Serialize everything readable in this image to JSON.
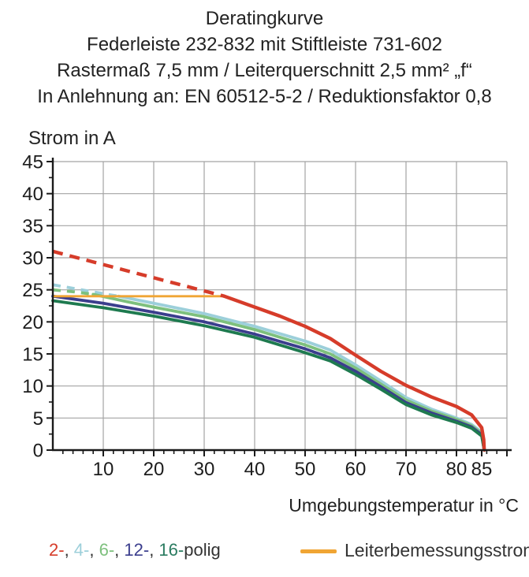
{
  "title": {
    "lines": [
      "Deratingkurve",
      "Federleiste 232-832 mit Stiftleiste 731-602",
      "Rastermaß 7,5 mm / Leiterquerschnitt 2,5 mm² „f“",
      "In Anlehnung an: EN 60512-5-2 / Reduktionsfaktor 0,8"
    ]
  },
  "axes": {
    "y_label": "Strom in A",
    "x_label": "Umgebungstemperatur in °C"
  },
  "legend_left": {
    "items": [
      {
        "label": "2-",
        "color": "#d63c2a"
      },
      {
        "label": "4-",
        "color": "#9ccfda"
      },
      {
        "label": "6-",
        "color": "#7dc07d"
      },
      {
        "label": "12-",
        "color": "#3b3e8d"
      },
      {
        "label": "16-",
        "color": "#2a7b60"
      }
    ],
    "separator": ", ",
    "suffix": "polig"
  },
  "legend_right": {
    "label": "Leiterbemessungsstrom",
    "swatch_color": "#f0a534"
  },
  "colors": {
    "grid": "#a3a3a3",
    "axis": "#1a1a1a",
    "text": "#1c1c1c"
  },
  "chart_data": {
    "type": "line",
    "title": "Deratingkurve Federleiste 232-832 mit Stiftleiste 731-602",
    "xlabel": "Umgebungstemperatur in °C",
    "ylabel": "Strom in A",
    "xlim": [
      0,
      90
    ],
    "ylim": [
      0,
      45
    ],
    "grid": true,
    "x_grid_lines": [
      10,
      20,
      30,
      40,
      50,
      60,
      70,
      80,
      90
    ],
    "y_grid_lines": [
      5,
      10,
      15,
      20,
      25,
      30,
      35,
      40,
      45
    ],
    "x_tick_labels": [
      10,
      20,
      30,
      40,
      50,
      60,
      70,
      80,
      85
    ],
    "y_tick_labels": [
      0,
      5,
      10,
      15,
      20,
      25,
      30,
      35,
      40,
      45
    ],
    "x_minor_tick_step": 2,
    "y_minor_tick_step": 2.5,
    "rated_line": {
      "label": "Leiterbemessungsstrom",
      "value": 24,
      "x_from": 0,
      "x_to": 34,
      "color": "#f0a534",
      "width": 2.8
    },
    "series": [
      {
        "name": "2-polig",
        "color": "#d63c2a",
        "width": 4.4,
        "dash_until": 34,
        "dash": "13 9",
        "points": [
          [
            0,
            31
          ],
          [
            34,
            24
          ],
          [
            40,
            22.3
          ],
          [
            45,
            20.9
          ],
          [
            50,
            19.3
          ],
          [
            55,
            17.4
          ],
          [
            60,
            14.8
          ],
          [
            65,
            12.3
          ],
          [
            70,
            10.1
          ],
          [
            75,
            8.3
          ],
          [
            80,
            6.8
          ],
          [
            83,
            5.5
          ],
          [
            85,
            3.5
          ],
          [
            85.4,
            1.6
          ],
          [
            85.5,
            0
          ]
        ]
      },
      {
        "name": "4-polig",
        "color": "#9ccfda",
        "width": 3.8,
        "dash_until": 13,
        "dash": "10 8",
        "points": [
          [
            0,
            25.8
          ],
          [
            5,
            25.1
          ],
          [
            10,
            24.4
          ],
          [
            13,
            24.0
          ],
          [
            20,
            22.9
          ],
          [
            30,
            21.3
          ],
          [
            40,
            19.3
          ],
          [
            50,
            17.0
          ],
          [
            55,
            15.6
          ],
          [
            60,
            13.3
          ],
          [
            65,
            10.8
          ],
          [
            70,
            8.2
          ],
          [
            75,
            6.4
          ],
          [
            80,
            5.0
          ],
          [
            83,
            4.0
          ],
          [
            85,
            2.8
          ],
          [
            85.5,
            0
          ]
        ]
      },
      {
        "name": "6-polig",
        "color": "#7dc07d",
        "width": 3.8,
        "dash_until": 8,
        "dash": "10 8",
        "points": [
          [
            0,
            25.0
          ],
          [
            4,
            24.7
          ],
          [
            8,
            24.3
          ],
          [
            15,
            23.1
          ],
          [
            20,
            22.3
          ],
          [
            30,
            20.8
          ],
          [
            40,
            18.8
          ],
          [
            50,
            16.4
          ],
          [
            55,
            15.0
          ],
          [
            60,
            12.8
          ],
          [
            65,
            10.3
          ],
          [
            70,
            7.8
          ],
          [
            75,
            6.1
          ],
          [
            80,
            4.8
          ],
          [
            83,
            3.8
          ],
          [
            85,
            2.6
          ],
          [
            85.5,
            0
          ]
        ]
      },
      {
        "name": "12-polig",
        "color": "#3b3e8d",
        "width": 3.8,
        "dash_until": null,
        "dash": null,
        "points": [
          [
            0,
            24.0
          ],
          [
            10,
            22.9
          ],
          [
            20,
            21.5
          ],
          [
            30,
            20.0
          ],
          [
            40,
            18.1
          ],
          [
            50,
            15.8
          ],
          [
            55,
            14.4
          ],
          [
            60,
            12.3
          ],
          [
            65,
            9.9
          ],
          [
            70,
            7.4
          ],
          [
            75,
            5.8
          ],
          [
            80,
            4.5
          ],
          [
            83,
            3.6
          ],
          [
            85,
            2.4
          ],
          [
            85.5,
            0
          ]
        ]
      },
      {
        "name": "16-polig",
        "color": "#1e7a4f",
        "width": 3.8,
        "dash_until": null,
        "dash": null,
        "points": [
          [
            0,
            23.3
          ],
          [
            10,
            22.2
          ],
          [
            20,
            20.9
          ],
          [
            30,
            19.4
          ],
          [
            40,
            17.6
          ],
          [
            50,
            15.2
          ],
          [
            55,
            13.9
          ],
          [
            60,
            11.8
          ],
          [
            65,
            9.5
          ],
          [
            70,
            7.1
          ],
          [
            75,
            5.5
          ],
          [
            80,
            4.3
          ],
          [
            83,
            3.4
          ],
          [
            85,
            2.2
          ],
          [
            85.5,
            0
          ]
        ]
      }
    ]
  }
}
